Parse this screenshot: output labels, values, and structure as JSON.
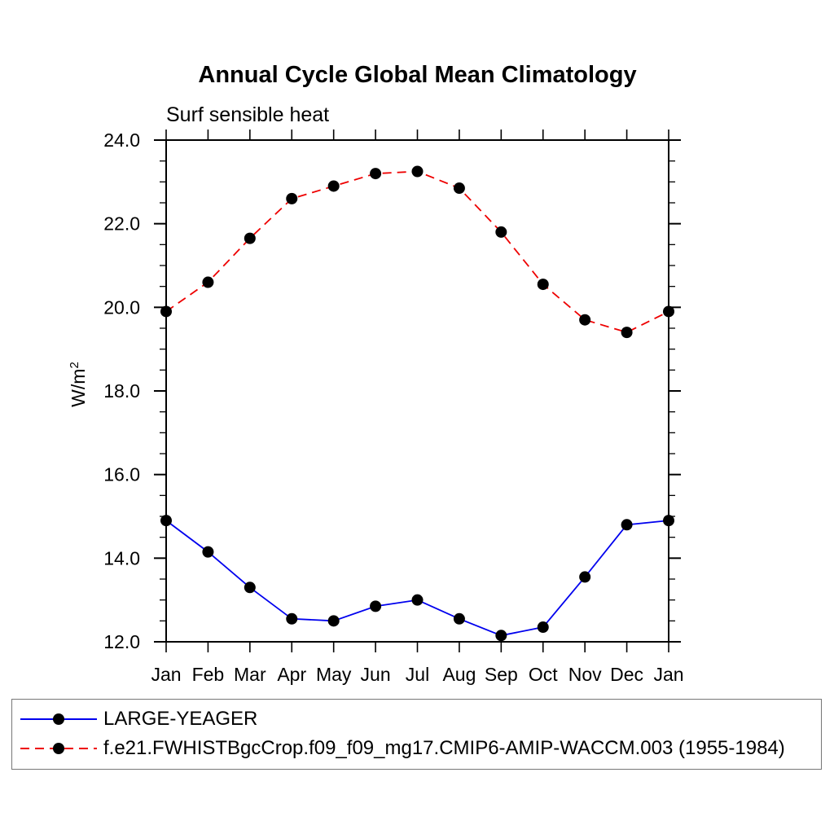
{
  "title": "Annual Cycle Global Mean Climatology",
  "subtitle": "Surf sensible heat",
  "y_axis": {
    "label": "W/m²",
    "label_base": "W/m",
    "label_exponent": "2"
  },
  "legend": {
    "items": [
      {
        "label": "LARGE-YEAGER"
      },
      {
        "label": "f.e21.FWHISTBgcCrop.f09_f09_mg17.CMIP6-AMIP-WACCM.003 (1955-1984)"
      }
    ]
  },
  "chart_data": {
    "type": "line",
    "title": "Annual Cycle Global Mean Climatology",
    "subtitle": "Surf sensible heat",
    "ylabel": "W/m²",
    "xlabel": "",
    "x_categories": [
      "Jan",
      "Feb",
      "Mar",
      "Apr",
      "May",
      "Jun",
      "Jul",
      "Aug",
      "Sep",
      "Oct",
      "Nov",
      "Dec",
      "Jan"
    ],
    "ylim": [
      12.0,
      24.0
    ],
    "ytick_labels": [
      "12.0",
      "14.0",
      "16.0",
      "18.0",
      "20.0",
      "22.0",
      "24.0"
    ],
    "ytick_minor_step": 0.5,
    "grid": false,
    "legend_position": "bottom",
    "axis_color": "#000000",
    "marker_color": "#000000",
    "series": [
      {
        "name": "LARGE-YEAGER",
        "color": "#0000ee",
        "line_style": "solid",
        "marker": "filled-circle",
        "values": [
          14.9,
          14.15,
          13.3,
          12.55,
          12.5,
          12.85,
          13.0,
          12.55,
          12.15,
          12.35,
          13.55,
          14.8,
          14.9
        ]
      },
      {
        "name": "f.e21.FWHISTBgcCrop.f09_f09_mg17.CMIP6-AMIP-WACCM.003 (1955-1984)",
        "color": "#ee0000",
        "line_style": "dashed",
        "marker": "filled-circle",
        "values": [
          19.9,
          20.6,
          21.65,
          22.6,
          22.9,
          23.2,
          23.25,
          22.85,
          21.8,
          20.55,
          19.7,
          19.4,
          19.9
        ]
      }
    ]
  }
}
